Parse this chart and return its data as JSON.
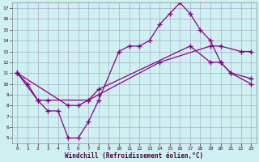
{
  "xlabel": "Windchill (Refroidissement éolien,°C)",
  "background_color": "#cff0f0",
  "grid_color": "#aaaacc",
  "line_color": "#880088",
  "xlim_min": -0.5,
  "xlim_max": 23.5,
  "ylim_min": 4.5,
  "ylim_max": 17.5,
  "yticks": [
    5,
    6,
    7,
    8,
    9,
    10,
    11,
    12,
    13,
    14,
    15,
    16,
    17
  ],
  "xticks": [
    0,
    1,
    2,
    3,
    4,
    5,
    6,
    7,
    8,
    9,
    10,
    11,
    12,
    13,
    14,
    15,
    16,
    17,
    18,
    19,
    20,
    21,
    22,
    23
  ],
  "line1_x": [
    0,
    1,
    2,
    3,
    4,
    5,
    6,
    7,
    8,
    10,
    11,
    12,
    13,
    14,
    15,
    16,
    17,
    18,
    19,
    20,
    21,
    23
  ],
  "line1_y": [
    11.0,
    10.0,
    8.5,
    7.5,
    7.5,
    5.0,
    5.0,
    6.5,
    8.5,
    13.0,
    13.5,
    13.5,
    14.0,
    15.5,
    16.5,
    17.5,
    16.5,
    15.0,
    14.0,
    12.0,
    11.0,
    10.0
  ],
  "line2_x": [
    0,
    2,
    3,
    7,
    8,
    17,
    19,
    20,
    21,
    23
  ],
  "line2_y": [
    11.0,
    8.5,
    8.5,
    8.5,
    9.5,
    13.5,
    12.0,
    12.0,
    11.0,
    10.5
  ],
  "line3_x": [
    0,
    5,
    6,
    7,
    8,
    14,
    19,
    20,
    22,
    23
  ],
  "line3_y": [
    11.0,
    8.0,
    8.0,
    8.5,
    9.0,
    12.0,
    13.5,
    13.5,
    13.0,
    13.0
  ]
}
